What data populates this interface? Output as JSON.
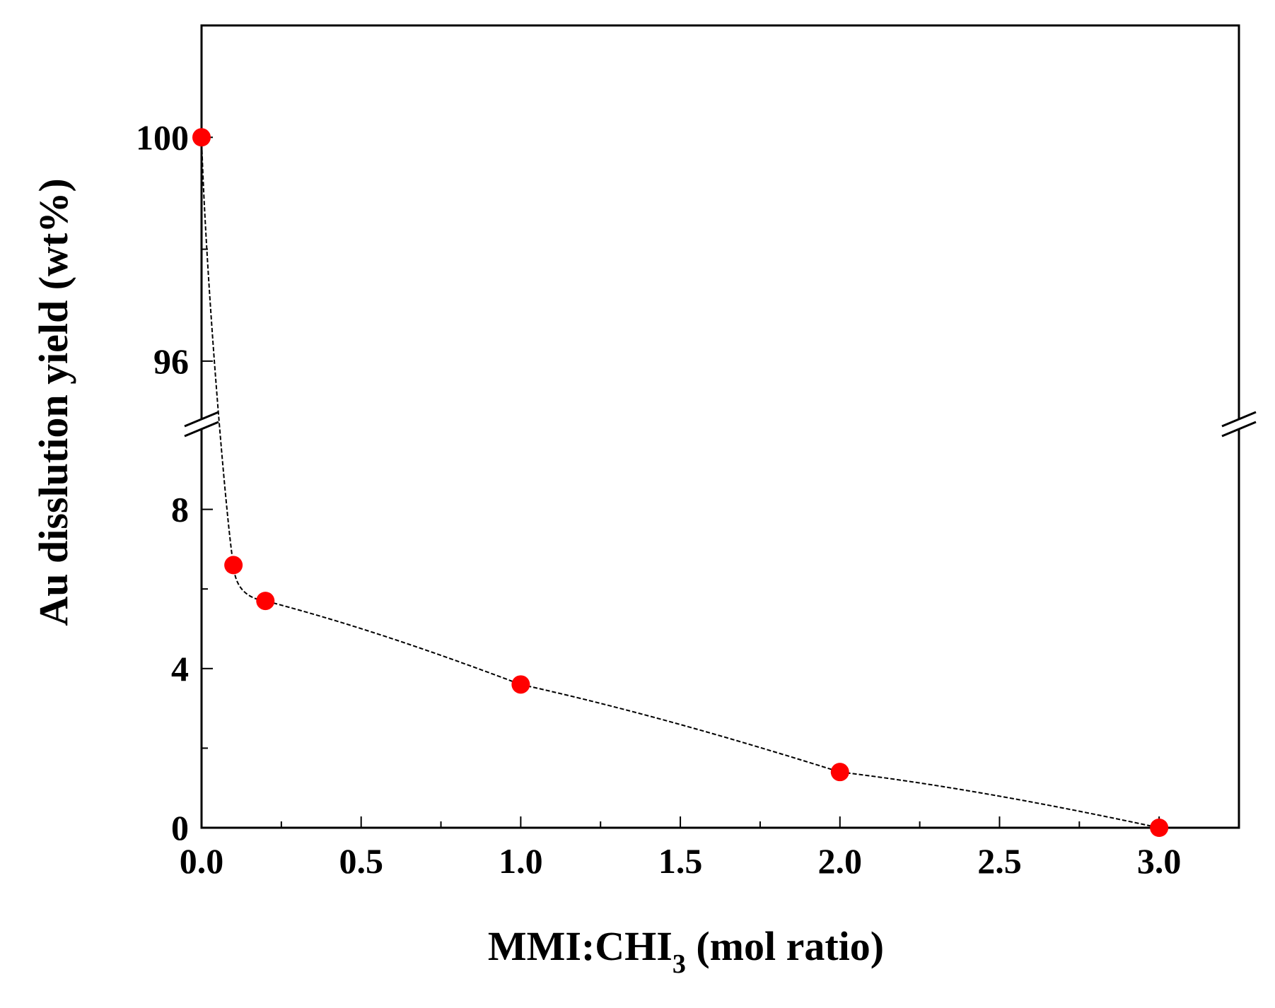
{
  "chart_data": {
    "type": "scatter",
    "title": "",
    "xlabel_main": "MMI:CHI",
    "xlabel_sub": "3",
    "xlabel_tail": " (mol ratio)",
    "ylabel": "Au disslution yield (wt%)",
    "xlim": [
      0.0,
      3.25
    ],
    "x_ticks": [
      0.0,
      0.5,
      1.0,
      1.5,
      2.0,
      2.5,
      3.0
    ],
    "x_tick_labels": [
      "0.0",
      "0.5",
      "1.0",
      "1.5",
      "2.0",
      "2.5",
      "3.0"
    ],
    "y_axis_broken": true,
    "y_lower_range": [
      0,
      10
    ],
    "y_upper_range": [
      95,
      102
    ],
    "y_lower_ticks": [
      0,
      4,
      8
    ],
    "y_lower_tick_labels": [
      "0",
      "4",
      "8"
    ],
    "y_upper_ticks": [
      96,
      100
    ],
    "y_upper_tick_labels": [
      "96",
      "100"
    ],
    "series": [
      {
        "name": "Au dissolution",
        "marker_color": "#ff0000",
        "line_color": "#000000",
        "points": [
          {
            "x": 0.0,
            "y": 100.0
          },
          {
            "x": 0.1,
            "y": 6.6
          },
          {
            "x": 0.2,
            "y": 5.7
          },
          {
            "x": 1.0,
            "y": 3.6
          },
          {
            "x": 2.0,
            "y": 1.4
          },
          {
            "x": 3.0,
            "y": 0.0
          }
        ]
      }
    ]
  }
}
